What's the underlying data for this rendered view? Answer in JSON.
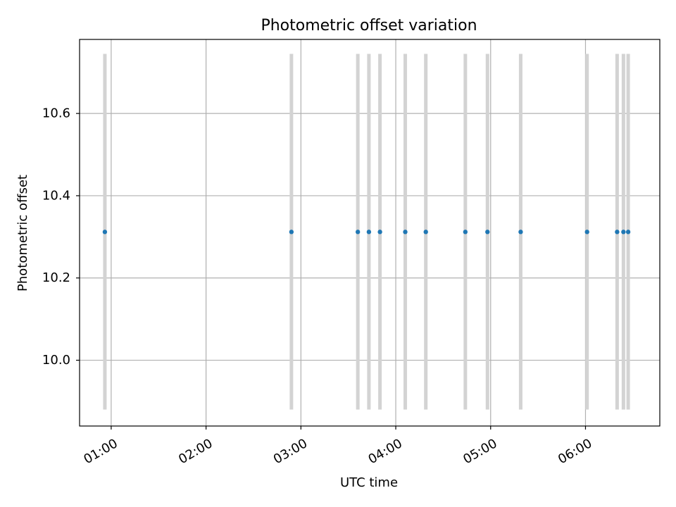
{
  "chart_data": {
    "type": "scatter",
    "title": "Photometric offset variation",
    "xlabel": "UTC time",
    "ylabel": "Photometric offset",
    "x_axis": {
      "type": "time",
      "range": [
        "00:40",
        "06:47"
      ],
      "ticks": [
        "01:00",
        "02:00",
        "03:00",
        "04:00",
        "05:00",
        "06:00"
      ]
    },
    "y_axis": {
      "range": [
        9.84,
        10.78
      ],
      "ticks": [
        10.0,
        10.2,
        10.4,
        10.6
      ],
      "tick_labels": [
        "10.0",
        "10.2",
        "10.4",
        "10.6"
      ]
    },
    "grid": true,
    "series": [
      {
        "kind": "points",
        "color": "#1f77b4",
        "x": [
          "00:56",
          "02:54",
          "03:36",
          "03:43",
          "03:50",
          "04:06",
          "04:19",
          "04:44",
          "04:58",
          "05:19",
          "06:01",
          "06:20",
          "06:24",
          "06:27"
        ],
        "y": [
          10.312,
          10.312,
          10.312,
          10.312,
          10.312,
          10.312,
          10.312,
          10.312,
          10.312,
          10.312,
          10.312,
          10.312,
          10.312,
          10.312
        ]
      },
      {
        "kind": "vertical-bands",
        "color": "#d3d3d3",
        "x": [
          "00:56",
          "02:54",
          "03:36",
          "03:43",
          "03:50",
          "04:06",
          "04:19",
          "04:44",
          "04:58",
          "05:19",
          "06:01",
          "06:20",
          "06:24",
          "06:27"
        ],
        "y_range": [
          9.88,
          10.745
        ]
      }
    ]
  }
}
